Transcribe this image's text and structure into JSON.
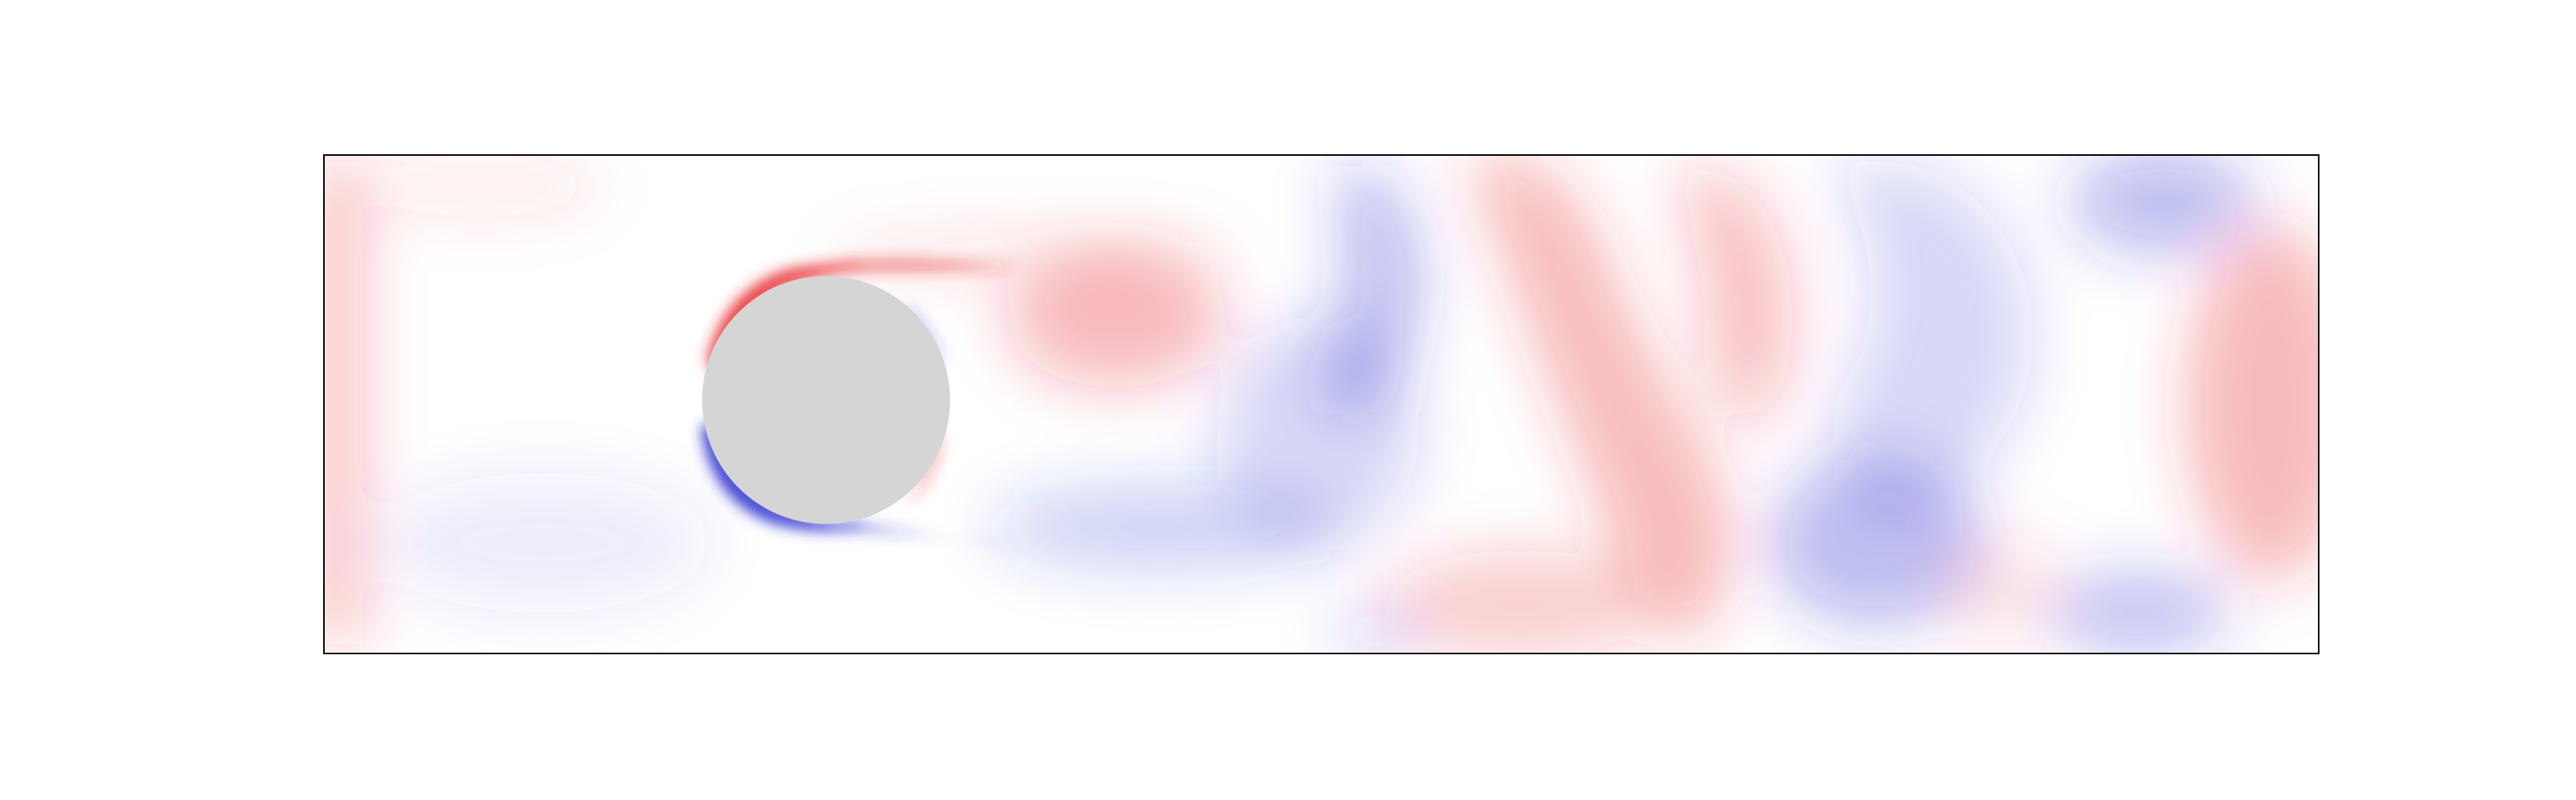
{
  "figure": {
    "kind": "vorticity-field",
    "colormap": "bwr",
    "colors": {
      "positive": "#e8262b",
      "negative": "#2a2ed0",
      "neutral": "#ffffff",
      "obstacle": "#d5d5d5",
      "frame": "#000000",
      "background": "#ffffff"
    },
    "obstacle": {
      "shape": "circle"
    }
  }
}
